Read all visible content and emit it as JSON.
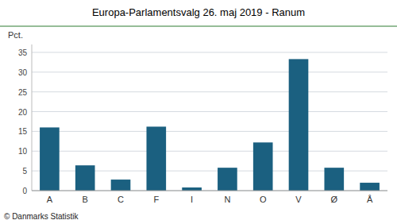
{
  "chart_data": {
    "type": "bar",
    "title": "Europa-Parlamentsvalg 26. maj 2019 - Ranum",
    "categories": [
      "A",
      "B",
      "C",
      "F",
      "I",
      "N",
      "O",
      "V",
      "Ø",
      "Å"
    ],
    "values": [
      16.0,
      6.4,
      2.8,
      16.2,
      0.8,
      5.8,
      12.2,
      33.3,
      5.8,
      2.0
    ],
    "color": "#1b6080",
    "ylabel": "Pct.",
    "ylim": [
      0,
      37
    ],
    "yticks": [
      0,
      5,
      10,
      15,
      20,
      25,
      30,
      35
    ],
    "grid": true,
    "footer": "© Danmarks Statistik"
  }
}
